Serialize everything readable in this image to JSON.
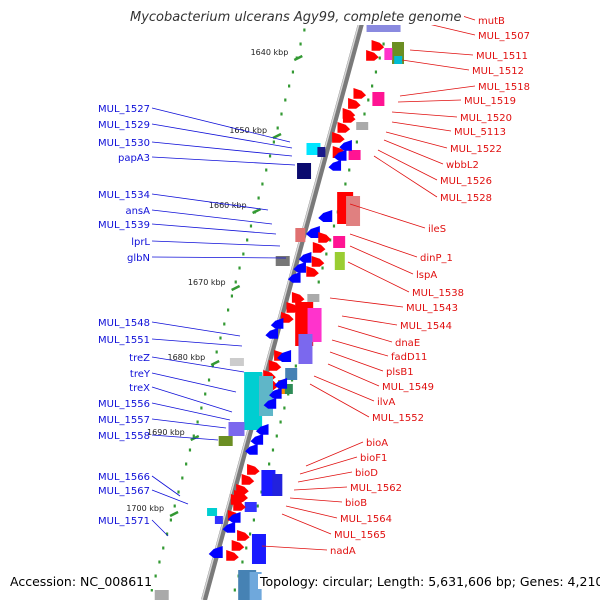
{
  "title": "Mycobacterium ulcerans Agy99, complete genome",
  "footer": {
    "accession": "Accession: NC_008611",
    "topology": "Topology: circular; Length: 5,631,606 bp; Genes: 4,210"
  },
  "scale_labels": [
    "1640 kbp",
    "1650 kbp",
    "1660 kbp",
    "1670 kbp",
    "1680 kbp",
    "1690 kbp",
    "1700 kbp"
  ],
  "left_genes": [
    "MUL_1527",
    "MUL_1529",
    "MUL_1530",
    "papA3",
    "MUL_1534",
    "ansA",
    "MUL_1539",
    "lprL",
    "glbN",
    "MUL_1548",
    "MUL_1551",
    "treZ",
    "treY",
    "treX",
    "MUL_1556",
    "MUL_1557",
    "MUL_1558",
    "MUL_1566",
    "MUL_1567",
    "MUL_1571"
  ],
  "right_genes": [
    "mutB",
    "MUL_1507",
    "MUL_1511",
    "MUL_1512",
    "MUL_1518",
    "MUL_1519",
    "MUL_1520",
    "MUL_5113",
    "MUL_1522",
    "wbbL2",
    "MUL_1526",
    "MUL_1528",
    "ileS",
    "dinP_1",
    "lspA",
    "MUL_1538",
    "MUL_1543",
    "MUL_1544",
    "dnaE",
    "fadD11",
    "plsB1",
    "MUL_1549",
    "ilvA",
    "MUL_1552",
    "bioA",
    "bioF1",
    "bioD",
    "MUL_1562",
    "bioB",
    "MUL_1564",
    "MUL_1565",
    "nadA"
  ],
  "colors": {
    "strand_forward": "#ff0000",
    "strand_reverse": "#0000ff",
    "backbone": "#888888",
    "tick": "#339933"
  }
}
